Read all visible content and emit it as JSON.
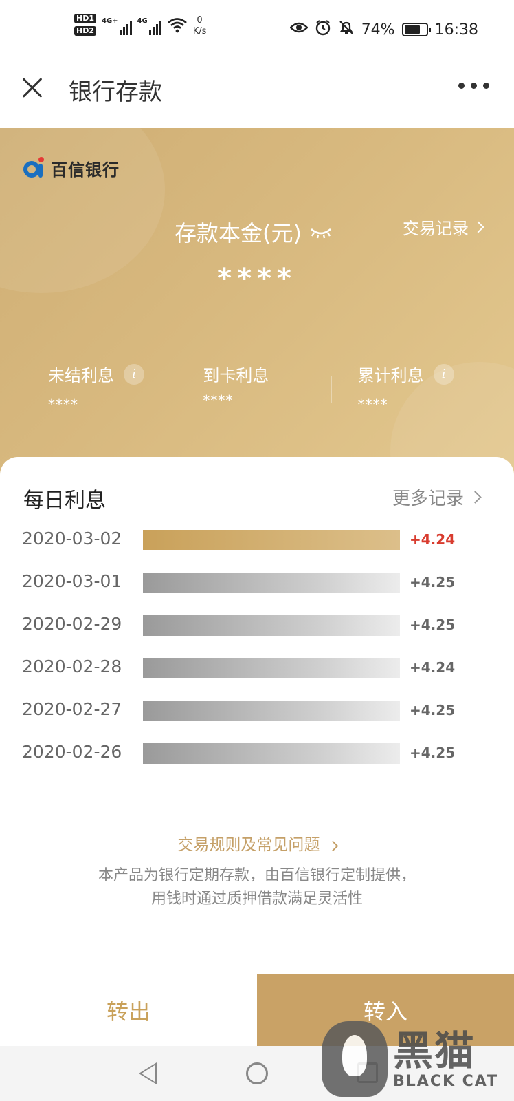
{
  "status_bar": {
    "hd1": "HD1",
    "hd2": "HD2",
    "net1": "4G+",
    "net2": "4G",
    "speed_value": "0",
    "speed_unit": "K/s",
    "battery": "74%",
    "battery_level": 0.74,
    "time": "16:38"
  },
  "header": {
    "title": "银行存款"
  },
  "account": {
    "bank_name": "百信银行",
    "principal_label": "存款本金(元)",
    "transaction_link": "交易记录",
    "principal_value": "****",
    "unsettled_label": "未结利息",
    "unsettled_value": "****",
    "received_label": "到卡利息",
    "received_value": "****",
    "total_label": "累计利息",
    "total_value": "****"
  },
  "daily": {
    "title": "每日利息",
    "more_link": "更多记录",
    "rows": [
      {
        "date": "2020-03-02",
        "amount": "+4.24",
        "highlight": true
      },
      {
        "date": "2020-03-01",
        "amount": "+4.25",
        "highlight": false
      },
      {
        "date": "2020-02-29",
        "amount": "+4.25",
        "highlight": false
      },
      {
        "date": "2020-02-28",
        "amount": "+4.24",
        "highlight": false
      },
      {
        "date": "2020-02-27",
        "amount": "+4.25",
        "highlight": false
      },
      {
        "date": "2020-02-26",
        "amount": "+4.25",
        "highlight": false
      }
    ]
  },
  "footer": {
    "faq_link": "交易规则及常见问题",
    "disclaimer_line1": "本产品为银行定期存款，由百信银行定制提供，",
    "disclaimer_line2": "用钱时通过质押借款满足灵活性"
  },
  "actions": {
    "transfer_out": "转出",
    "transfer_in": "转入"
  },
  "watermark": {
    "cn": "黑猫",
    "en": "BLACK CAT"
  },
  "colors": {
    "gold": "#c9a266",
    "accent_red": "#d83b2e",
    "bank_blue": "#1a6fc0"
  }
}
